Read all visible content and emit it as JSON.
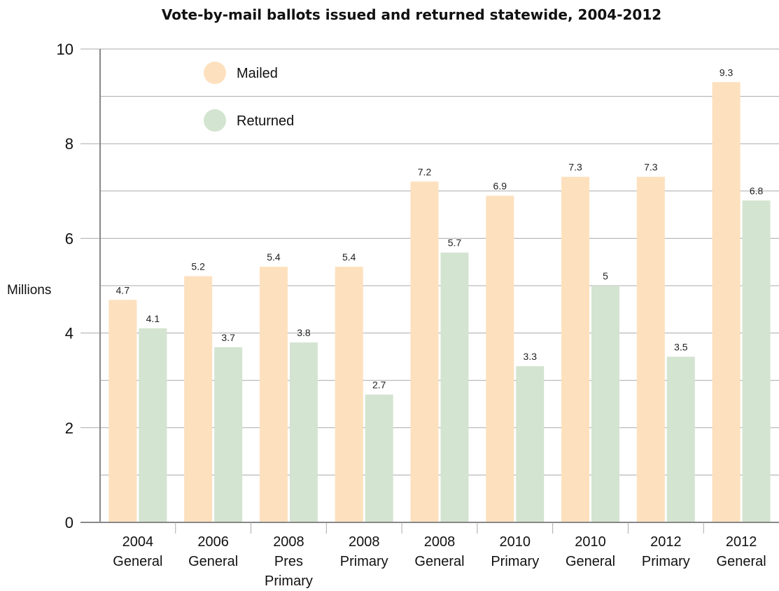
{
  "chart_data": {
    "type": "bar",
    "title": "Vote-by-mail ballots issued and returned statewide, 2004-2012",
    "ylabel": "Millions",
    "xlabel": "",
    "ylim": [
      0,
      10
    ],
    "yticks": [
      0,
      2,
      4,
      6,
      8,
      10
    ],
    "grid": true,
    "legend_position": "top-left",
    "categories": [
      [
        "2004",
        "General"
      ],
      [
        "2006",
        "General"
      ],
      [
        "2008",
        "Pres",
        "Primary"
      ],
      [
        "2008",
        "Primary"
      ],
      [
        "2008",
        "General"
      ],
      [
        "2010",
        "Primary"
      ],
      [
        "2010",
        "General"
      ],
      [
        "2012",
        "Primary"
      ],
      [
        "2012",
        "General"
      ]
    ],
    "series": [
      {
        "name": "Mailed",
        "color": "#fde0bd",
        "values": [
          4.7,
          5.2,
          5.4,
          5.4,
          7.2,
          6.9,
          7.3,
          7.3,
          9.3
        ]
      },
      {
        "name": "Returned",
        "color": "#d3e4d0",
        "values": [
          4.1,
          3.7,
          3.8,
          2.7,
          5.7,
          3.3,
          5,
          3.5,
          6.8
        ]
      }
    ]
  }
}
